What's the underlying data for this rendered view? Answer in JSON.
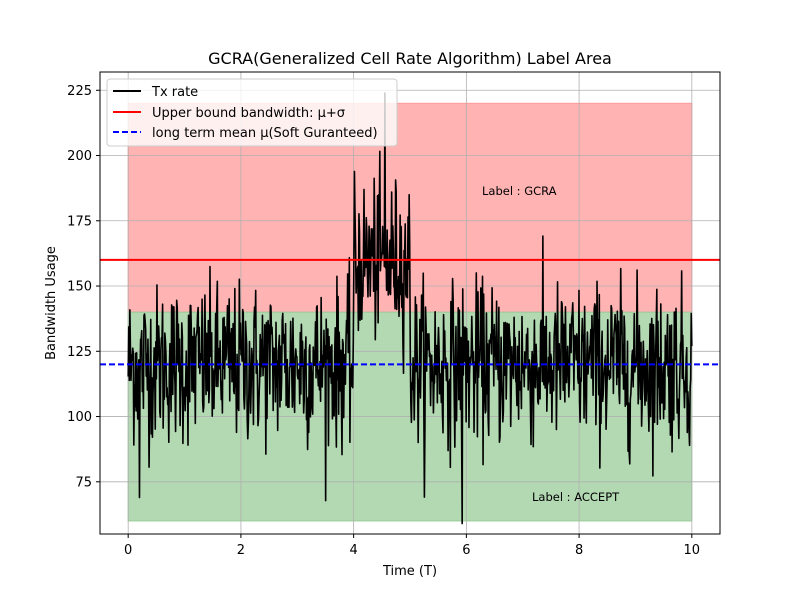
{
  "chart_data": {
    "type": "line",
    "title": "GCRA(Generalized Cell Rate Algorithm) Label Area",
    "xlabel": "Time (T)",
    "ylabel": "Bandwidth Usage",
    "xlim": [
      -0.5,
      10.5
    ],
    "ylim": [
      55,
      232
    ],
    "xticks": [
      0,
      2,
      4,
      6,
      8,
      10
    ],
    "yticks": [
      75,
      100,
      125,
      150,
      175,
      200,
      225
    ],
    "grid": true,
    "legend_position": "upper-left",
    "regions": [
      {
        "name": "Label : GCRA",
        "x": [
          0,
          10
        ],
        "y": [
          140,
          220
        ],
        "color": "#ff9999"
      },
      {
        "name": "Label : ACCEPT",
        "x": [
          0,
          10
        ],
        "y": [
          60,
          140
        ],
        "color": "#99cc99"
      }
    ],
    "hlines": [
      {
        "name": "Upper bound bandwidth: μ+σ",
        "y": 160,
        "color": "#ff0000",
        "style": "solid"
      },
      {
        "name": "long term mean μ(Soft Guranteed)",
        "y": 120,
        "color": "#0000ff",
        "style": "dashed"
      }
    ],
    "series": [
      {
        "name": "Tx rate",
        "color": "#000000",
        "x_range": [
          0,
          10
        ],
        "n_points": 1000,
        "segments": [
          {
            "x": [
              0,
              4
            ],
            "mean": 120,
            "std": 20,
            "min": 65,
            "max": 168
          },
          {
            "x": [
              4,
              5
            ],
            "mean": 160,
            "std": 20,
            "min": 88,
            "max": 224
          },
          {
            "x": [
              5,
              10
            ],
            "mean": 120,
            "std": 20,
            "min": 59,
            "max": 170
          }
        ],
        "notable_points": [
          {
            "x": 4.55,
            "y": 224
          },
          {
            "x": 5.93,
            "y": 59
          },
          {
            "x": 0.2,
            "y": 69
          }
        ]
      }
    ],
    "annotations": [
      {
        "text": "Label : GCRA",
        "x": 6.3,
        "y": 183
      },
      {
        "text": "Label : ACCEPT",
        "x": 7.2,
        "y": 64
      }
    ]
  }
}
